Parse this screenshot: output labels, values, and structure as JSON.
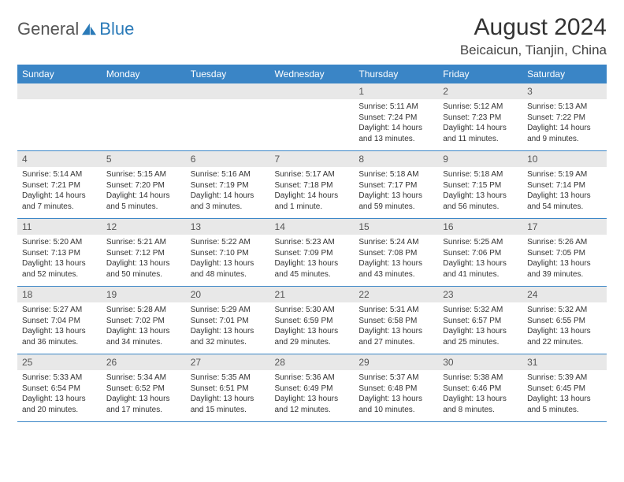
{
  "brand": {
    "text_general": "General",
    "text_blue": "Blue",
    "general_color": "#555555",
    "blue_color": "#2a7ab8"
  },
  "header": {
    "title": "August 2024",
    "subtitle": "Beicaicun, Tianjin, China"
  },
  "style": {
    "header_bg": "#3a85c6",
    "header_text": "#ffffff",
    "daynum_bg": "#e8e8e8",
    "page_bg": "#ffffff",
    "border_color": "#3a85c6"
  },
  "day_names": [
    "Sunday",
    "Monday",
    "Tuesday",
    "Wednesday",
    "Thursday",
    "Friday",
    "Saturday"
  ],
  "weeks": [
    [
      {
        "num": "",
        "sunrise": "",
        "sunset": "",
        "daylight": ""
      },
      {
        "num": "",
        "sunrise": "",
        "sunset": "",
        "daylight": ""
      },
      {
        "num": "",
        "sunrise": "",
        "sunset": "",
        "daylight": ""
      },
      {
        "num": "",
        "sunrise": "",
        "sunset": "",
        "daylight": ""
      },
      {
        "num": "1",
        "sunrise": "Sunrise: 5:11 AM",
        "sunset": "Sunset: 7:24 PM",
        "daylight": "Daylight: 14 hours and 13 minutes."
      },
      {
        "num": "2",
        "sunrise": "Sunrise: 5:12 AM",
        "sunset": "Sunset: 7:23 PM",
        "daylight": "Daylight: 14 hours and 11 minutes."
      },
      {
        "num": "3",
        "sunrise": "Sunrise: 5:13 AM",
        "sunset": "Sunset: 7:22 PM",
        "daylight": "Daylight: 14 hours and 9 minutes."
      }
    ],
    [
      {
        "num": "4",
        "sunrise": "Sunrise: 5:14 AM",
        "sunset": "Sunset: 7:21 PM",
        "daylight": "Daylight: 14 hours and 7 minutes."
      },
      {
        "num": "5",
        "sunrise": "Sunrise: 5:15 AM",
        "sunset": "Sunset: 7:20 PM",
        "daylight": "Daylight: 14 hours and 5 minutes."
      },
      {
        "num": "6",
        "sunrise": "Sunrise: 5:16 AM",
        "sunset": "Sunset: 7:19 PM",
        "daylight": "Daylight: 14 hours and 3 minutes."
      },
      {
        "num": "7",
        "sunrise": "Sunrise: 5:17 AM",
        "sunset": "Sunset: 7:18 PM",
        "daylight": "Daylight: 14 hours and 1 minute."
      },
      {
        "num": "8",
        "sunrise": "Sunrise: 5:18 AM",
        "sunset": "Sunset: 7:17 PM",
        "daylight": "Daylight: 13 hours and 59 minutes."
      },
      {
        "num": "9",
        "sunrise": "Sunrise: 5:18 AM",
        "sunset": "Sunset: 7:15 PM",
        "daylight": "Daylight: 13 hours and 56 minutes."
      },
      {
        "num": "10",
        "sunrise": "Sunrise: 5:19 AM",
        "sunset": "Sunset: 7:14 PM",
        "daylight": "Daylight: 13 hours and 54 minutes."
      }
    ],
    [
      {
        "num": "11",
        "sunrise": "Sunrise: 5:20 AM",
        "sunset": "Sunset: 7:13 PM",
        "daylight": "Daylight: 13 hours and 52 minutes."
      },
      {
        "num": "12",
        "sunrise": "Sunrise: 5:21 AM",
        "sunset": "Sunset: 7:12 PM",
        "daylight": "Daylight: 13 hours and 50 minutes."
      },
      {
        "num": "13",
        "sunrise": "Sunrise: 5:22 AM",
        "sunset": "Sunset: 7:10 PM",
        "daylight": "Daylight: 13 hours and 48 minutes."
      },
      {
        "num": "14",
        "sunrise": "Sunrise: 5:23 AM",
        "sunset": "Sunset: 7:09 PM",
        "daylight": "Daylight: 13 hours and 45 minutes."
      },
      {
        "num": "15",
        "sunrise": "Sunrise: 5:24 AM",
        "sunset": "Sunset: 7:08 PM",
        "daylight": "Daylight: 13 hours and 43 minutes."
      },
      {
        "num": "16",
        "sunrise": "Sunrise: 5:25 AM",
        "sunset": "Sunset: 7:06 PM",
        "daylight": "Daylight: 13 hours and 41 minutes."
      },
      {
        "num": "17",
        "sunrise": "Sunrise: 5:26 AM",
        "sunset": "Sunset: 7:05 PM",
        "daylight": "Daylight: 13 hours and 39 minutes."
      }
    ],
    [
      {
        "num": "18",
        "sunrise": "Sunrise: 5:27 AM",
        "sunset": "Sunset: 7:04 PM",
        "daylight": "Daylight: 13 hours and 36 minutes."
      },
      {
        "num": "19",
        "sunrise": "Sunrise: 5:28 AM",
        "sunset": "Sunset: 7:02 PM",
        "daylight": "Daylight: 13 hours and 34 minutes."
      },
      {
        "num": "20",
        "sunrise": "Sunrise: 5:29 AM",
        "sunset": "Sunset: 7:01 PM",
        "daylight": "Daylight: 13 hours and 32 minutes."
      },
      {
        "num": "21",
        "sunrise": "Sunrise: 5:30 AM",
        "sunset": "Sunset: 6:59 PM",
        "daylight": "Daylight: 13 hours and 29 minutes."
      },
      {
        "num": "22",
        "sunrise": "Sunrise: 5:31 AM",
        "sunset": "Sunset: 6:58 PM",
        "daylight": "Daylight: 13 hours and 27 minutes."
      },
      {
        "num": "23",
        "sunrise": "Sunrise: 5:32 AM",
        "sunset": "Sunset: 6:57 PM",
        "daylight": "Daylight: 13 hours and 25 minutes."
      },
      {
        "num": "24",
        "sunrise": "Sunrise: 5:32 AM",
        "sunset": "Sunset: 6:55 PM",
        "daylight": "Daylight: 13 hours and 22 minutes."
      }
    ],
    [
      {
        "num": "25",
        "sunrise": "Sunrise: 5:33 AM",
        "sunset": "Sunset: 6:54 PM",
        "daylight": "Daylight: 13 hours and 20 minutes."
      },
      {
        "num": "26",
        "sunrise": "Sunrise: 5:34 AM",
        "sunset": "Sunset: 6:52 PM",
        "daylight": "Daylight: 13 hours and 17 minutes."
      },
      {
        "num": "27",
        "sunrise": "Sunrise: 5:35 AM",
        "sunset": "Sunset: 6:51 PM",
        "daylight": "Daylight: 13 hours and 15 minutes."
      },
      {
        "num": "28",
        "sunrise": "Sunrise: 5:36 AM",
        "sunset": "Sunset: 6:49 PM",
        "daylight": "Daylight: 13 hours and 12 minutes."
      },
      {
        "num": "29",
        "sunrise": "Sunrise: 5:37 AM",
        "sunset": "Sunset: 6:48 PM",
        "daylight": "Daylight: 13 hours and 10 minutes."
      },
      {
        "num": "30",
        "sunrise": "Sunrise: 5:38 AM",
        "sunset": "Sunset: 6:46 PM",
        "daylight": "Daylight: 13 hours and 8 minutes."
      },
      {
        "num": "31",
        "sunrise": "Sunrise: 5:39 AM",
        "sunset": "Sunset: 6:45 PM",
        "daylight": "Daylight: 13 hours and 5 minutes."
      }
    ]
  ]
}
